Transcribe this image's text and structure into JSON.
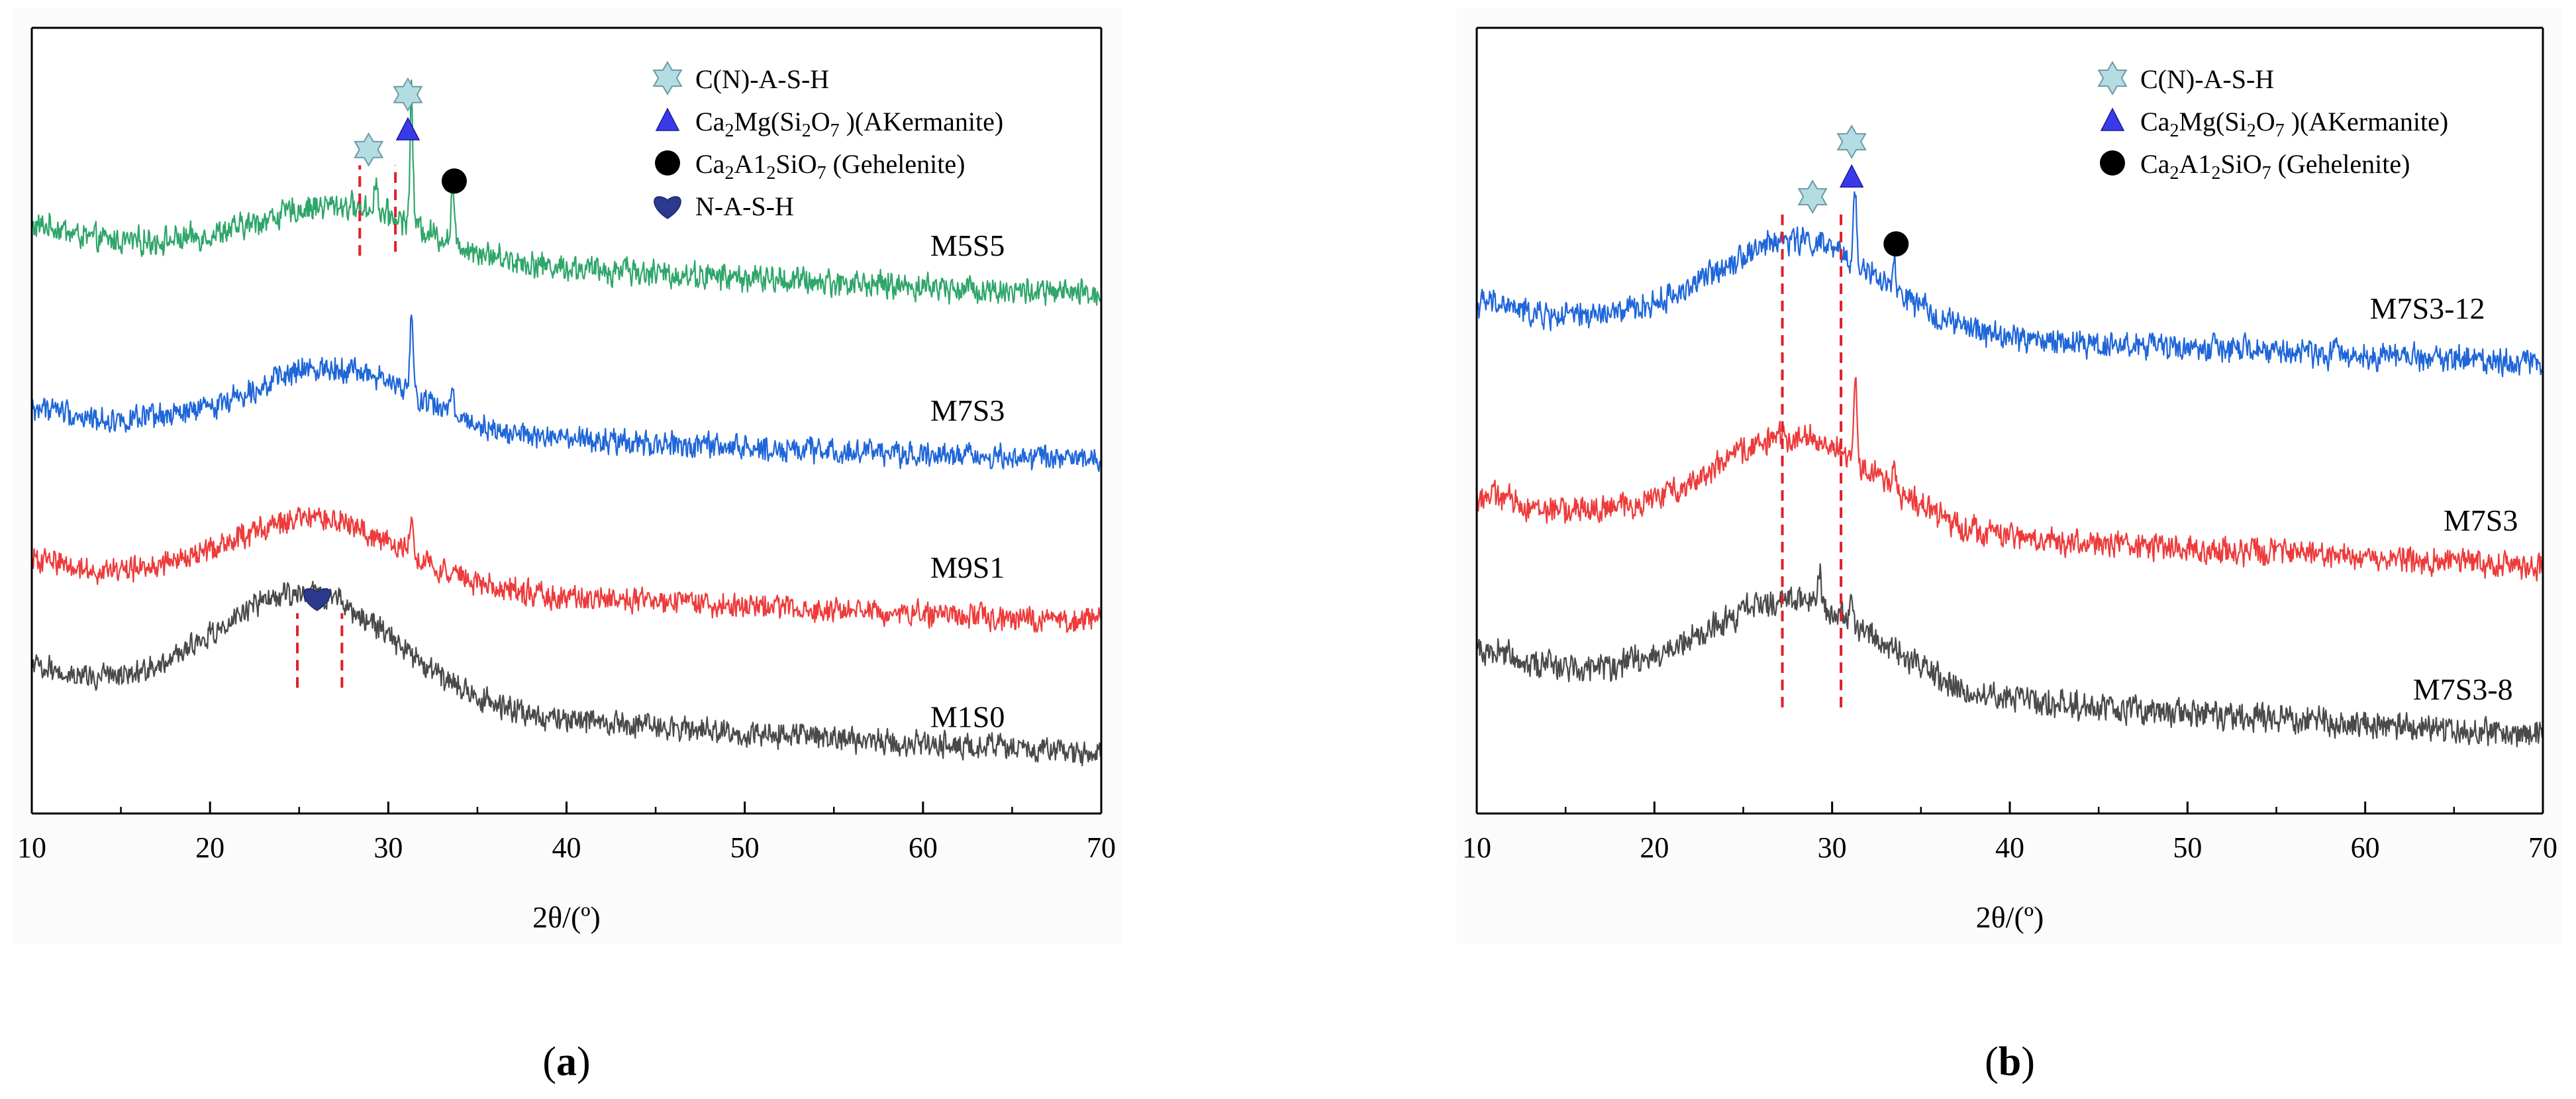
{
  "chart_data": [
    {
      "type": "line",
      "panel_label": "a",
      "xlabel": "2θ/(º)",
      "ylabel": "",
      "xlim": [
        10,
        70
      ],
      "ylim": [
        0,
        100
      ],
      "x_ticks": [
        10,
        20,
        30,
        40,
        50,
        60,
        70
      ],
      "grid": false,
      "legend_position": "top-right",
      "legend": [
        {
          "marker": "star",
          "color": "#b3dce3",
          "label": "C(N)-A-S-H"
        },
        {
          "marker": "triangle",
          "color": "#3a3ae8",
          "label_main": "Ca",
          "sub1": "2",
          "mid1": "Mg(Si",
          "sub2": "2",
          "mid2": "O",
          "sub3": "7",
          "tail": " )(AKermanite)"
        },
        {
          "marker": "circle",
          "color": "#000000",
          "label_main": "Ca",
          "sub1": "2",
          "mid1": "A1",
          "sub2": "2",
          "mid2": "SiO",
          "sub3": "7",
          "tail": " (Gehelenite)"
        },
        {
          "marker": "heart",
          "color": "#2b3a8f",
          "label": "N-A-S-H"
        }
      ],
      "series": [
        {
          "name": "M5S5",
          "color": "#2fa66a",
          "base": 73.8,
          "end": 66.0,
          "hump_center": 27.5,
          "hump_height": 6.5,
          "hump_width": 6.5,
          "noise": 1.4,
          "peaks": [
            {
              "x": 29.3,
              "h": 4.5
            },
            {
              "x": 31.3,
              "h": 16.5
            },
            {
              "x": 33.6,
              "h": 7.0
            },
            {
              "x": 43.3,
              "h": 2.0
            }
          ]
        },
        {
          "name": "M7S3",
          "color": "#1f66d9",
          "base": 50.6,
          "end": 45.0,
          "hump_center": 27.0,
          "hump_height": 8.2,
          "hump_width": 6.5,
          "noise": 1.3,
          "peaks": [
            {
              "x": 31.3,
              "h": 10.0
            },
            {
              "x": 33.6,
              "h": 4.0
            }
          ]
        },
        {
          "name": "M9S1",
          "color": "#ee3b3b",
          "base": 31.3,
          "end": 24.5,
          "hump_center": 26.0,
          "hump_height": 8.5,
          "hump_width": 6.8,
          "noise": 1.3,
          "peaks": [
            {
              "x": 31.3,
              "h": 6.0
            }
          ]
        },
        {
          "name": "M1S0",
          "color": "#4a4a4a",
          "base": 17.5,
          "end": 7.5,
          "hump_center": 25.5,
          "hump_height": 14.0,
          "hump_width": 7.0,
          "noise": 1.3,
          "peaks": []
        }
      ],
      "series_labels": [
        {
          "text": "M5S5",
          "x": 62.5,
          "y": 71.0
        },
        {
          "text": "M7S3",
          "x": 62.5,
          "y": 50.0
        },
        {
          "text": "M9S1",
          "x": 62.5,
          "y": 30.0
        },
        {
          "text": "M1S0",
          "x": 62.5,
          "y": 11.0
        }
      ],
      "markers": [
        {
          "type": "star",
          "x": 31.1,
          "y": 91.5
        },
        {
          "type": "triangle",
          "x": 31.1,
          "y": 87.0
        },
        {
          "type": "star",
          "x": 28.9,
          "y": 84.5
        },
        {
          "type": "circle",
          "x": 33.7,
          "y": 80.5
        },
        {
          "type": "heart",
          "x": 26.0,
          "y": 27.5
        }
      ],
      "dashed_lines": [
        {
          "x": 28.4,
          "y0": 71.0,
          "y1": 82.5
        },
        {
          "x": 30.4,
          "y0": 71.5,
          "y1": 82.5
        },
        {
          "x": 24.9,
          "y0": 16.0,
          "y1": 25.5
        },
        {
          "x": 27.4,
          "y0": 16.0,
          "y1": 25.5
        }
      ]
    },
    {
      "type": "line",
      "panel_label": "b",
      "xlabel": "2θ/(º)",
      "ylabel": "",
      "xlim": [
        10,
        70
      ],
      "ylim": [
        0,
        100
      ],
      "x_ticks": [
        10,
        20,
        30,
        40,
        50,
        60,
        70
      ],
      "grid": false,
      "legend_position": "top-right",
      "legend": [
        {
          "marker": "star",
          "color": "#b3dce3",
          "label": "C(N)-A-S-H"
        },
        {
          "marker": "triangle",
          "color": "#3a3ae8",
          "label_main": "Ca",
          "sub1": "2",
          "mid1": "Mg(Si",
          "sub2": "2",
          "mid2": "O",
          "sub3": "7",
          "tail": " )(AKermanite)"
        },
        {
          "marker": "circle",
          "color": "#000000",
          "label_main": "Ca",
          "sub1": "2",
          "mid1": "A1",
          "sub2": "2",
          "mid2": "SiO",
          "sub3": "7",
          "tail": " (Gehelenite)"
        }
      ],
      "series": [
        {
          "name": "M7S3-12",
          "color": "#1f66d9",
          "base": 64.0,
          "end": 57.5,
          "hump_center": 28.0,
          "hump_height": 11.5,
          "hump_width": 6.5,
          "noise": 1.4,
          "peaks": [
            {
              "x": 31.3,
              "h": 10.0
            },
            {
              "x": 33.5,
              "h": 3.5
            }
          ]
        },
        {
          "name": "M7S3",
          "color": "#ee3b3b",
          "base": 39.5,
          "end": 31.5,
          "hump_center": 28.0,
          "hump_height": 11.5,
          "hump_width": 6.5,
          "noise": 1.4,
          "peaks": [
            {
              "x": 31.3,
              "h": 10.0
            },
            {
              "x": 33.5,
              "h": 4.0
            }
          ]
        },
        {
          "name": "M7S3-8",
          "color": "#4a4a4a",
          "base": 20.0,
          "end": 10.0,
          "hump_center": 28.0,
          "hump_height": 11.0,
          "hump_width": 6.5,
          "noise": 1.5,
          "peaks": [
            {
              "x": 29.3,
              "h": 4.0
            },
            {
              "x": 31.1,
              "h": 4.5
            }
          ]
        }
      ],
      "series_labels": [
        {
          "text": "M7S3-12",
          "x": 63.5,
          "y": 63.0
        },
        {
          "text": "M7S3",
          "x": 66.5,
          "y": 36.0
        },
        {
          "text": "M7S3-8",
          "x": 65.5,
          "y": 14.5
        }
      ],
      "markers": [
        {
          "type": "star",
          "x": 31.1,
          "y": 85.5
        },
        {
          "type": "triangle",
          "x": 31.1,
          "y": 81.0
        },
        {
          "type": "star",
          "x": 28.9,
          "y": 78.5
        },
        {
          "type": "circle",
          "x": 33.6,
          "y": 72.5
        }
      ],
      "dashed_lines": [
        {
          "x": 27.2,
          "y0": 13.5,
          "y1": 76.5
        },
        {
          "x": 30.5,
          "y0": 13.5,
          "y1": 76.5
        }
      ]
    }
  ]
}
